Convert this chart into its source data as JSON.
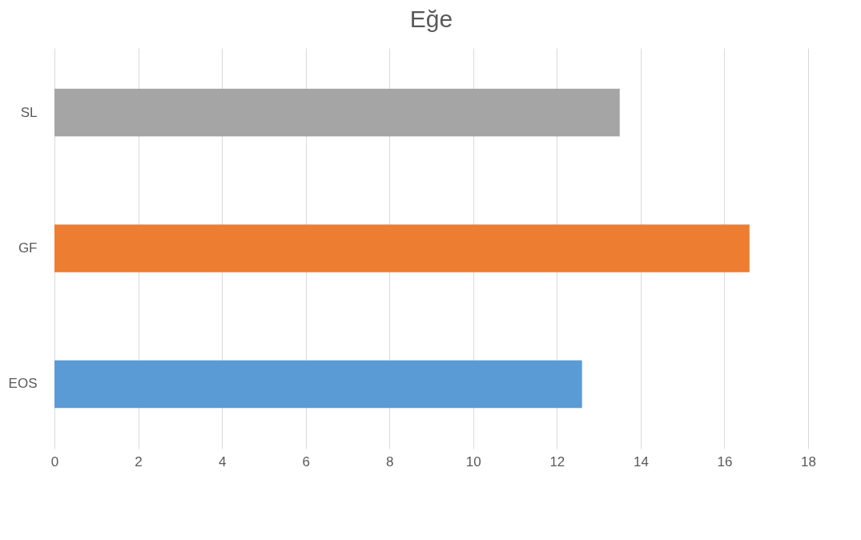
{
  "chart_data": {
    "type": "bar",
    "orientation": "horizontal",
    "title": "Eğe",
    "categories": [
      "SL",
      "GF",
      "EOS"
    ],
    "values": [
      13.5,
      16.6,
      12.6
    ],
    "colors": [
      "#a5a5a5",
      "#ed7d31",
      "#5b9bd5"
    ],
    "xlim": [
      0,
      18
    ],
    "xticks": [
      0,
      2,
      4,
      6,
      8,
      10,
      12,
      14,
      16,
      18
    ],
    "grid": "x",
    "legend": false
  }
}
